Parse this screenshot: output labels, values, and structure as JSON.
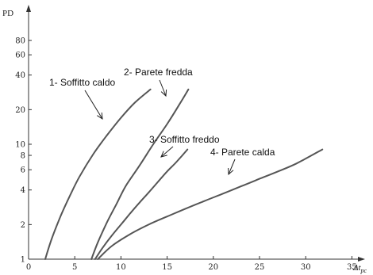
{
  "chart_data": {
    "type": "line",
    "ylabel": "PD",
    "xlabel_main": "Δt",
    "xlabel_sub": "pc",
    "x_ticks": [
      0,
      5,
      10,
      15,
      20,
      25,
      30,
      35
    ],
    "x_tick_labels": [
      "0",
      "5",
      "10",
      "15",
      "20",
      "25",
      "30",
      "35"
    ],
    "y_ticks": [
      1,
      2,
      4,
      6,
      8,
      10,
      20,
      40,
      60,
      80
    ],
    "y_tick_labels": [
      "1",
      "2",
      "4",
      "6",
      "8",
      "10",
      "20",
      "40",
      "60",
      "80"
    ],
    "xlim": [
      0,
      38
    ],
    "ylim": [
      1,
      100
    ],
    "y_scale": "log",
    "grid": false,
    "series": [
      {
        "name": "1- Soffitto caldo",
        "x": [
          1.8,
          2.5,
          3.5,
          4.5,
          5.5,
          7,
          8.5,
          10,
          11.5,
          13.2
        ],
        "y": [
          1,
          1.5,
          2.4,
          3.6,
          5.2,
          8.2,
          12,
          17,
          23,
          30
        ]
      },
      {
        "name": "2- Parete fredda",
        "x": [
          6.8,
          7.5,
          8.5,
          9.5,
          10.5,
          12,
          13.5,
          15,
          16.3,
          17.3
        ],
        "y": [
          1,
          1.4,
          2.1,
          3.0,
          4.3,
          6.5,
          10,
          15,
          22,
          30
        ]
      },
      {
        "name": "3- Soffitto freddo",
        "x": [
          7.2,
          8,
          9,
          10,
          11,
          12,
          13,
          14,
          15,
          16,
          17.2
        ],
        "y": [
          1,
          1.25,
          1.6,
          2.0,
          2.5,
          3.1,
          3.8,
          4.7,
          5.8,
          7.0,
          9.0
        ]
      },
      {
        "name": "4- Parete calda",
        "x": [
          7.5,
          9,
          11,
          13,
          15,
          17,
          19,
          21,
          23,
          25,
          27,
          29,
          31.8
        ],
        "y": [
          1,
          1.3,
          1.65,
          2.0,
          2.35,
          2.75,
          3.2,
          3.7,
          4.3,
          5.0,
          5.8,
          6.8,
          9.0
        ]
      }
    ],
    "annotations": [
      {
        "text": "1- Soffitto caldo",
        "series": 0
      },
      {
        "text": "2- Parete fredda",
        "series": 1
      },
      {
        "text": "3- Soffitto freddo",
        "series": 2
      },
      {
        "text": "4- Parete calda",
        "series": 3
      }
    ]
  }
}
